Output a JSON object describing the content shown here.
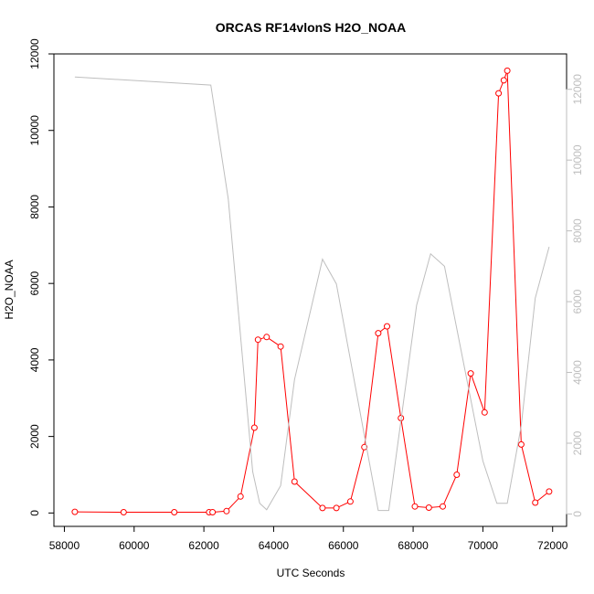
{
  "chart_data": {
    "type": "line",
    "title": "ORCAS RF14vlonS H2O_NOAA",
    "xlabel": "UTC Seconds",
    "ylabel": "H2O_NOAA",
    "xlim": [
      57700,
      72400
    ],
    "ylim": [
      -350,
      12000
    ],
    "x_ticks": [
      58000,
      60000,
      62000,
      64000,
      66000,
      68000,
      70000,
      72000
    ],
    "y_ticks": [
      0,
      2000,
      4000,
      6000,
      8000,
      10000,
      12000
    ],
    "y2lim": [
      -350,
      13000
    ],
    "y2_ticks": [
      0,
      2000,
      4000,
      6000,
      8000,
      10000,
      12000
    ],
    "grid": false,
    "series": [
      {
        "color": "#ff0000",
        "marker": "open-circle",
        "axis": "left",
        "x": [
          58300,
          59700,
          61150,
          62150,
          62250,
          62650,
          63050,
          63450,
          63550,
          63800,
          64200,
          64600,
          65400,
          65800,
          66200,
          66600,
          67000,
          67250,
          67650,
          68050,
          68450,
          68850,
          69250,
          69650,
          70050,
          70450,
          70600,
          70700,
          71100,
          71500,
          71900
        ],
        "y": [
          30,
          20,
          20,
          20,
          20,
          50,
          430,
          2230,
          4530,
          4600,
          4350,
          820,
          130,
          130,
          300,
          1720,
          4700,
          4880,
          2480,
          170,
          140,
          170,
          1000,
          3650,
          2630,
          10970,
          11310,
          11560,
          1790,
          270,
          560
        ]
      },
      {
        "color": "#bebebe",
        "marker": "none",
        "axis": "right",
        "x": [
          58300,
          62200,
          62700,
          63400,
          63600,
          63800,
          64200,
          64600,
          65400,
          65800,
          67000,
          67300,
          68100,
          68500,
          68900,
          70000,
          70400,
          70700,
          71100,
          71500,
          71900
        ],
        "y": [
          12350,
          12120,
          8900,
          1200,
          300,
          120,
          800,
          3800,
          7200,
          6500,
          100,
          100,
          5900,
          7350,
          7000,
          1500,
          300,
          300,
          2500,
          6100,
          7550
        ]
      }
    ]
  }
}
